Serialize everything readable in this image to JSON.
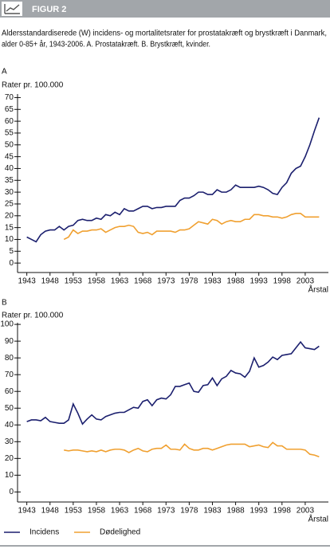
{
  "figure_label": "FIGUR 2",
  "caption": [
    "Aldersstandardiserede (W) incidens- og mortalitetsrater for prostatakræft og brystkræft i Danmark,",
    "alder 0-85+ år, 1943-2006. A. Prostatakræft. B. Brystkræft, kvinder."
  ],
  "chart_data": [
    {
      "type": "line",
      "panel": "A",
      "ylabel": "Rater pr. 100.000",
      "xlabel": "Årstal",
      "x": [
        1943,
        1944,
        1945,
        1946,
        1947,
        1948,
        1949,
        1950,
        1951,
        1952,
        1953,
        1954,
        1955,
        1956,
        1957,
        1958,
        1959,
        1960,
        1961,
        1962,
        1963,
        1964,
        1965,
        1966,
        1967,
        1968,
        1969,
        1970,
        1971,
        1972,
        1973,
        1974,
        1975,
        1976,
        1977,
        1978,
        1979,
        1980,
        1981,
        1982,
        1983,
        1984,
        1985,
        1986,
        1987,
        1988,
        1989,
        1990,
        1991,
        1992,
        1993,
        1994,
        1995,
        1996,
        1997,
        1998,
        1999,
        2000,
        2001,
        2002,
        2003,
        2004,
        2005,
        2006
      ],
      "xlim": [
        1941,
        2008
      ],
      "xticks": [
        1943,
        1948,
        1953,
        1958,
        1963,
        1968,
        1973,
        1978,
        1983,
        1988,
        1993,
        1998,
        2003
      ],
      "ylim": [
        -4,
        71.5
      ],
      "yticks": [
        0,
        5,
        10,
        15,
        20,
        25,
        30,
        35,
        40,
        45,
        50,
        55,
        60,
        65,
        70
      ],
      "series": [
        {
          "color": "#1b1f6e",
          "values": [
            11,
            10,
            9,
            12,
            13.5,
            14,
            14,
            15.5,
            14,
            15.5,
            16,
            18,
            18.5,
            18,
            18,
            19,
            18.5,
            20.5,
            20,
            21.5,
            20.5,
            23,
            22,
            22,
            23,
            24,
            24,
            23,
            23.5,
            23.5,
            24,
            24,
            24,
            26.5,
            27.5,
            27.5,
            28.5,
            30,
            30,
            29,
            29,
            31,
            30,
            30,
            31,
            33,
            32,
            32,
            32,
            32,
            32.5,
            32,
            31,
            29.5,
            29,
            32,
            34,
            38,
            40,
            41,
            45,
            50,
            56,
            61.5
          ]
        },
        {
          "color": "#f0a030",
          "values": [
            null,
            null,
            null,
            null,
            null,
            null,
            null,
            null,
            10,
            11,
            14,
            12.5,
            13.5,
            13.5,
            14,
            14,
            14.5,
            13,
            14,
            15,
            15.5,
            15.5,
            16,
            15.5,
            13,
            12.5,
            13,
            12,
            13.5,
            13.5,
            13.5,
            13.5,
            13,
            14,
            14,
            14.5,
            16,
            17.5,
            17,
            16.5,
            18.5,
            18,
            16.5,
            17.5,
            18,
            17.5,
            17.5,
            18.5,
            18.5,
            20.5,
            20.5,
            20,
            20,
            19.5,
            19.5,
            19,
            19.5,
            20.5,
            21,
            21,
            19.5,
            19.5,
            19.5,
            19.5
          ]
        }
      ]
    },
    {
      "type": "line",
      "panel": "B",
      "ylabel": "Rater pr. 100.000",
      "xlabel": "Årstal",
      "x": [
        1943,
        1944,
        1945,
        1946,
        1947,
        1948,
        1949,
        1950,
        1951,
        1952,
        1953,
        1954,
        1955,
        1956,
        1957,
        1958,
        1959,
        1960,
        1961,
        1962,
        1963,
        1964,
        1965,
        1966,
        1967,
        1968,
        1969,
        1970,
        1971,
        1972,
        1973,
        1974,
        1975,
        1976,
        1977,
        1978,
        1979,
        1980,
        1981,
        1982,
        1983,
        1984,
        1985,
        1986,
        1987,
        1988,
        1989,
        1990,
        1991,
        1992,
        1993,
        1994,
        1995,
        1996,
        1997,
        1998,
        1999,
        2000,
        2001,
        2002,
        2003,
        2004,
        2005,
        2006
      ],
      "xlim": [
        1941,
        2008
      ],
      "xticks": [
        1943,
        1948,
        1953,
        1958,
        1963,
        1968,
        1973,
        1978,
        1983,
        1988,
        1993,
        1998,
        2003
      ],
      "ylim": [
        -6,
        101
      ],
      "yticks": [
        0,
        10,
        20,
        30,
        40,
        50,
        60,
        70,
        80,
        90,
        100
      ],
      "series": [
        {
          "name": "Incidens",
          "color": "#1b1f6e",
          "values": [
            42,
            43,
            43,
            42.5,
            44.5,
            42,
            41.5,
            41,
            41,
            43,
            52.5,
            47,
            40.5,
            43.5,
            46,
            43.5,
            43,
            45,
            46,
            47,
            47.5,
            47.5,
            49,
            50.5,
            50,
            54,
            55,
            51.5,
            55,
            56,
            55.5,
            58,
            63,
            63,
            64,
            65,
            60,
            59.5,
            63.5,
            64,
            68,
            63.5,
            67.5,
            69,
            72.5,
            71,
            70.5,
            68.5,
            72,
            80,
            74.5,
            75.5,
            77.5,
            80.5,
            79,
            81.5,
            82,
            82.5,
            86,
            89.5,
            86,
            85.5,
            85,
            87
          ]
        },
        {
          "name": "Dødelighed",
          "color": "#f0a030",
          "values": [
            null,
            null,
            null,
            null,
            null,
            null,
            null,
            null,
            25,
            24.5,
            25,
            25,
            24.5,
            24,
            24.5,
            24,
            25,
            24,
            25,
            25.5,
            25.5,
            25,
            23.5,
            25,
            26,
            24.5,
            24,
            25.5,
            26,
            26,
            28,
            25.5,
            25.5,
            25,
            28.5,
            26,
            25,
            25,
            26,
            26,
            25,
            26,
            27,
            28,
            28.5,
            28.5,
            28.5,
            28.5,
            27,
            27.5,
            28,
            27,
            26.5,
            29.5,
            27.5,
            27.5,
            25.5,
            25.5,
            25.5,
            25.5,
            25,
            22.5,
            22,
            21
          ]
        }
      ]
    }
  ]
}
